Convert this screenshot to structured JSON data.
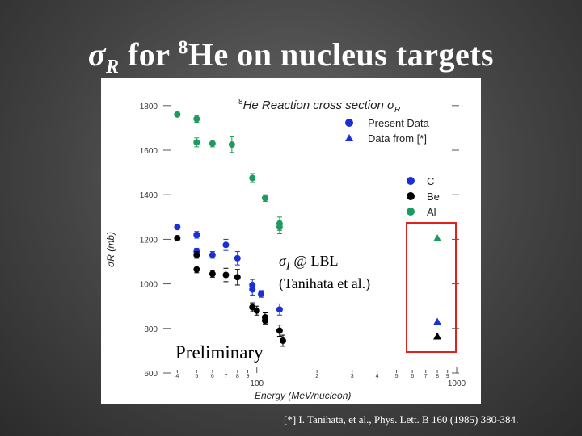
{
  "slide": {
    "title_symbol": "σ",
    "title_subscript": "R",
    "title_text1": " for ",
    "title_superscript": "8",
    "title_text2": "He on nucleus targets",
    "footnote": "[*] I. Tanihata,  et al., Phys. Lett. B 160 (1985) 380-384.",
    "annotations": {
      "sigma_symbol": "σ",
      "sigma_sub": "I",
      "sigma_rest": " @ LBL",
      "reference": "(Tanihata et al.)",
      "preliminary": "Preliminary"
    }
  },
  "chart_data": {
    "type": "scatter",
    "title_sup": "8",
    "title": "He Reaction cross section σ",
    "title_sub": "R",
    "xlabel": "Energy (MeV/nucleon)",
    "ylabel": "σR (mb)",
    "xscale": "log",
    "xlim": [
      35,
      1000
    ],
    "ylim": [
      600,
      1850
    ],
    "x_major_ticks": [
      100,
      1000
    ],
    "x_major_labels": [
      "100",
      "1000"
    ],
    "x_minor_ticks": [
      40,
      50,
      60,
      70,
      80,
      90,
      200,
      300,
      400,
      500,
      600,
      700,
      800,
      900
    ],
    "x_minor_labels": [
      "4",
      "5",
      "6",
      "7",
      "8",
      "9",
      "2",
      "3",
      "4",
      "5",
      "6",
      "7",
      "8",
      "9"
    ],
    "y_ticks": [
      600,
      800,
      1000,
      1200,
      1400,
      1600,
      1800
    ],
    "y_tick_labels": [
      "600",
      "800",
      "1000",
      "1200",
      "1400",
      "1600",
      "1800"
    ],
    "legend_marker": [
      {
        "label": "Present Data",
        "marker": "circle"
      },
      {
        "label": "Data from [*]",
        "marker": "triangle"
      }
    ],
    "legend_target": [
      {
        "label": "C",
        "color": "#1a2fd6"
      },
      {
        "label": "Be",
        "color": "#000000"
      },
      {
        "label": "Al",
        "color": "#1d9b5f"
      }
    ],
    "series": [
      {
        "name": "C",
        "color": "#1a2fd6",
        "marker": "circle",
        "points": [
          [
            40,
            1255
          ],
          [
            50,
            1220
          ],
          [
            50,
            1145
          ],
          [
            60,
            1130
          ],
          [
            70,
            1175
          ],
          [
            80,
            1115
          ],
          [
            95,
            995
          ],
          [
            95,
            975
          ],
          [
            105,
            955
          ],
          [
            130,
            885
          ]
        ],
        "errors": [
          10,
          15,
          15,
          15,
          25,
          30,
          25,
          25,
          15,
          25
        ]
      },
      {
        "name": "Be",
        "color": "#000000",
        "marker": "circle",
        "points": [
          [
            40,
            1205
          ],
          [
            50,
            1130
          ],
          [
            50,
            1065
          ],
          [
            60,
            1045
          ],
          [
            70,
            1040
          ],
          [
            80,
            1030
          ],
          [
            95,
            895
          ],
          [
            100,
            880
          ],
          [
            110,
            850
          ],
          [
            110,
            835
          ],
          [
            130,
            790
          ],
          [
            135,
            745
          ]
        ],
        "errors": [
          10,
          15,
          15,
          15,
          30,
          35,
          20,
          20,
          20,
          15,
          25,
          25
        ]
      },
      {
        "name": "Al",
        "color": "#1d9b5f",
        "marker": "circle",
        "points": [
          [
            40,
            1760
          ],
          [
            50,
            1740
          ],
          [
            50,
            1635
          ],
          [
            60,
            1630
          ],
          [
            75,
            1625
          ],
          [
            95,
            1475
          ],
          [
            110,
            1385
          ],
          [
            130,
            1270
          ],
          [
            130,
            1255
          ]
        ],
        "errors": [
          10,
          15,
          20,
          15,
          35,
          20,
          15,
          30,
          30
        ]
      },
      {
        "name": "C",
        "color": "#1a2fd6",
        "marker": "triangle",
        "points": [
          [
            800,
            830
          ]
        ],
        "errors": [
          0
        ]
      },
      {
        "name": "Be",
        "color": "#000000",
        "marker": "triangle",
        "points": [
          [
            800,
            765
          ]
        ],
        "errors": [
          0
        ]
      },
      {
        "name": "Al",
        "color": "#1d9b5f",
        "marker": "triangle",
        "points": [
          [
            800,
            1205
          ]
        ],
        "errors": [
          0
        ]
      }
    ]
  }
}
